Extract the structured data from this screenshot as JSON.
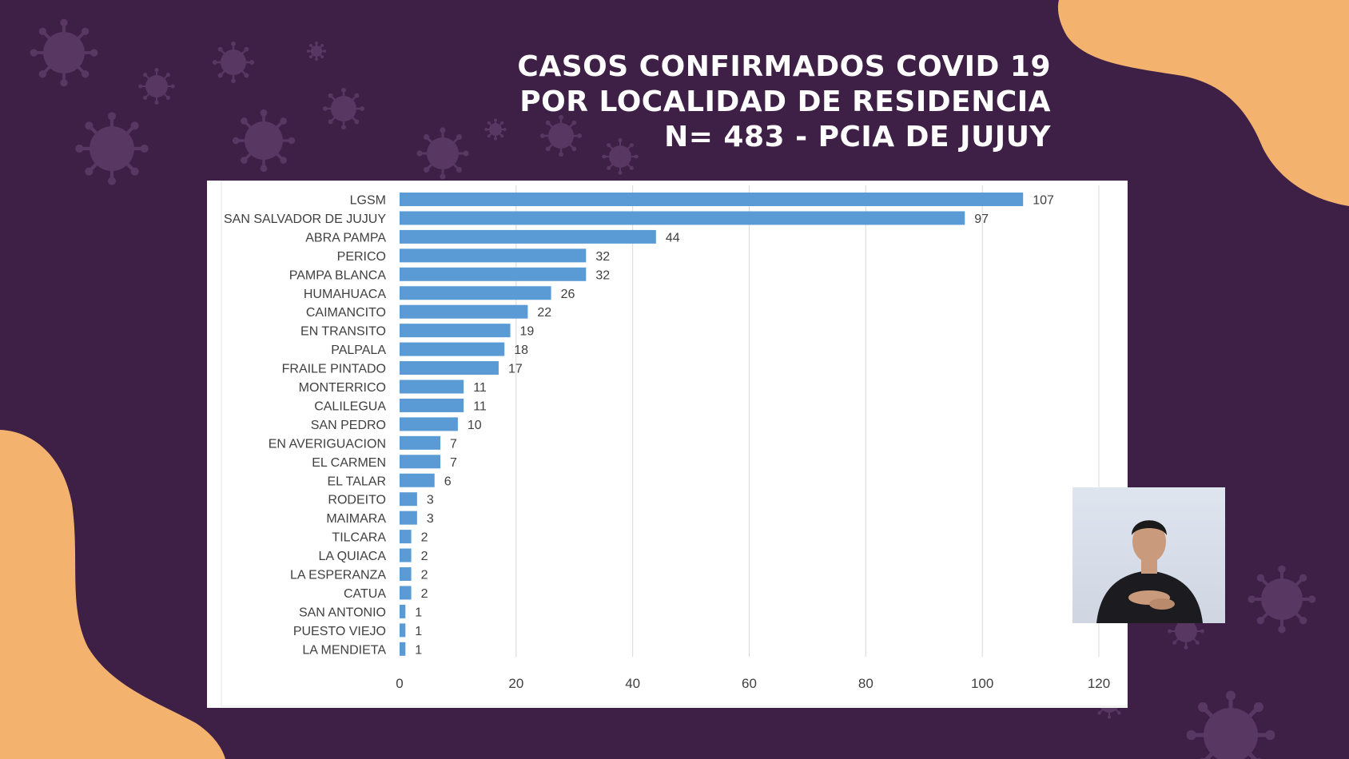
{
  "title": {
    "line1": "CASOS CONFIRMADOS COVID 19",
    "line2": "POR LOCALIDAD DE RESIDENCIA",
    "line3": "N= 483 - PCIA DE JUJUY"
  },
  "colors": {
    "background": "#3e2046",
    "blob": "#f4b26f",
    "virus_icon": "#5b3a66",
    "bar": "#5b9bd5",
    "gridline": "#d9d9d9",
    "text": "#404040"
  },
  "chart_data": {
    "type": "bar",
    "orientation": "horizontal",
    "categories": [
      "LGSM",
      "SAN SALVADOR DE JUJUY",
      "ABRA PAMPA",
      "PERICO",
      "PAMPA BLANCA",
      "HUMAHUACA",
      "CAIMANCITO",
      "EN TRANSITO",
      "PALPALA",
      "FRAILE PINTADO",
      "MONTERRICO",
      "CALILEGUA",
      "SAN PEDRO",
      "EN AVERIGUACION",
      "EL CARMEN",
      "EL TALAR",
      "RODEITO",
      "MAIMARA",
      "TILCARA",
      "LA QUIACA",
      "LA ESPERANZA",
      "CATUA",
      "SAN ANTONIO",
      "PUESTO VIEJO",
      "LA MENDIETA"
    ],
    "values": [
      107,
      97,
      44,
      32,
      32,
      26,
      22,
      19,
      18,
      17,
      11,
      11,
      10,
      7,
      7,
      6,
      3,
      3,
      2,
      2,
      2,
      2,
      1,
      1,
      1
    ],
    "xlim": [
      0,
      120
    ],
    "xticks": [
      0,
      20,
      40,
      60,
      80,
      100,
      120
    ],
    "grid": true,
    "data_labels": true
  }
}
